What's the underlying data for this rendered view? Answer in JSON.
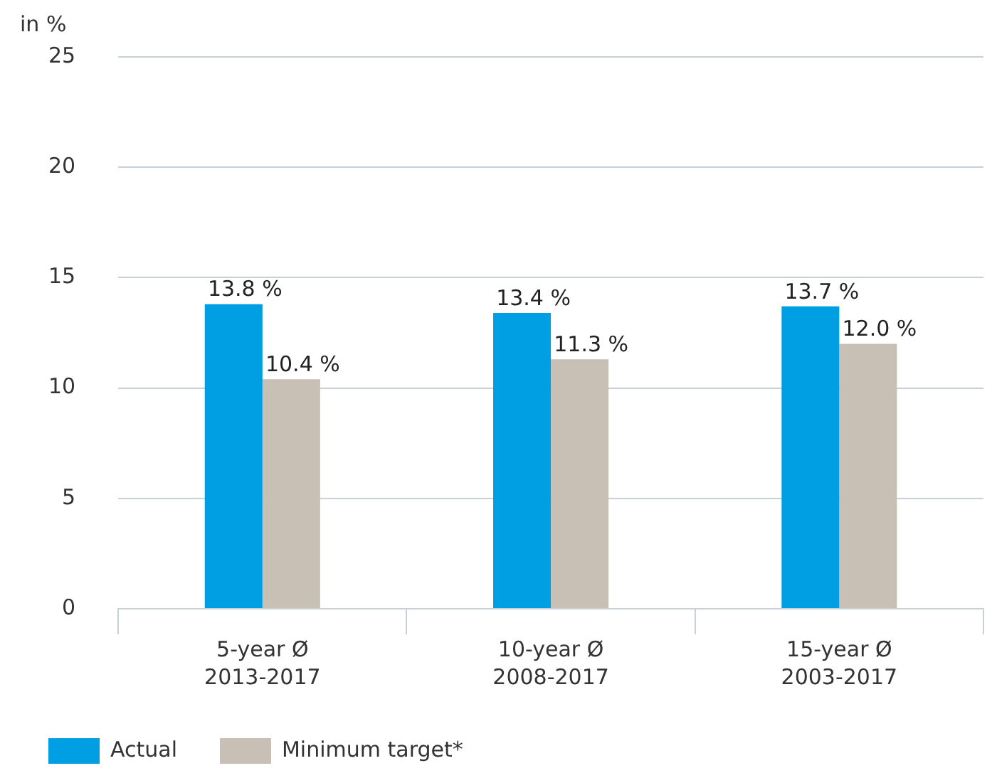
{
  "chart_data": {
    "type": "bar",
    "ylabel": "in %",
    "categories": [
      "5-year Ø\n2013-2017",
      "10-year Ø\n2008-2017",
      "15-year Ø\n2003-2017"
    ],
    "series": [
      {
        "name": "Actual",
        "color": "#009fe3",
        "values": [
          13.8,
          13.4,
          13.7
        ],
        "value_labels": [
          "13.8 %",
          "13.4 %",
          "13.7 %"
        ]
      },
      {
        "name": "Minimum target*",
        "color": "#c8bfb5",
        "values": [
          10.4,
          11.3,
          12.0
        ],
        "value_labels": [
          "10.4 %",
          "11.3 %",
          "12.0 %"
        ]
      }
    ],
    "ylim": [
      0,
      25
    ],
    "yticks": [
      0,
      5,
      10,
      15,
      20,
      25
    ],
    "grid": "y",
    "legend": "bottom left"
  }
}
